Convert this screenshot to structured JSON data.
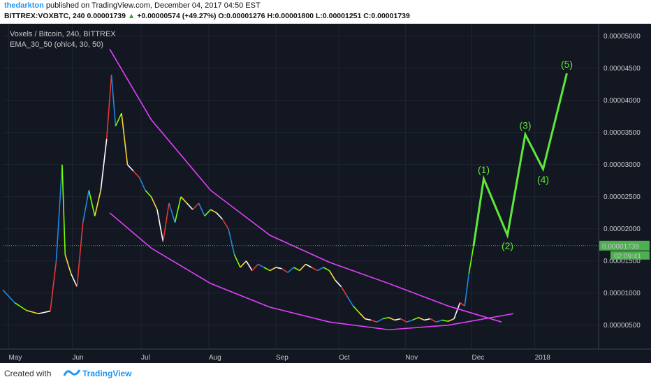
{
  "header": {
    "author": "thedarkton",
    "published_text": "published on TradingView.com, December 04, 2017 04:50 EST",
    "symbol": "BITTREX:VOXBTC, 240",
    "last": "0.00001739",
    "change": "+0.00000574 (+49.27%)",
    "open_label": "O:",
    "open": "0.00001276",
    "high_label": "H:",
    "high": "0.00001800",
    "low_label": "L:",
    "low": "0.00001251",
    "close_label": "C:",
    "close": "0.00001739"
  },
  "legend": {
    "pair": "Voxels / Bitcoin, 240, BITTREX",
    "indicator": "EMA_30_50 (ohlc4, 30, 50)"
  },
  "price_tag": {
    "value": "0.00001739",
    "countdown": "02:09:41",
    "color": "#4caf50"
  },
  "footer": {
    "created_with": "Created with",
    "brand": "TradingView"
  },
  "colors": {
    "background": "#131722",
    "channel": "#e040fb",
    "projection": "#5ee83a",
    "grid": "#1f2533"
  },
  "chart_data": {
    "type": "line",
    "title": "Voxels / Bitcoin, 240, BITTREX",
    "yaxis_ticks": [
      "0.00000500",
      "0.00001000",
      "0.00001500",
      "0.00002000",
      "0.00002500",
      "0.00003000",
      "0.00003500",
      "0.00004000",
      "0.00004500",
      "0.00005000"
    ],
    "y_tick_values": [
      5e-06,
      1e-05,
      1.5e-05,
      2e-05,
      2.5e-05,
      3e-05,
      3.5e-05,
      4e-05,
      4.5e-05,
      5e-05
    ],
    "ylim": [
      1.5e-06,
      5.15e-05
    ],
    "xlim": [
      0,
      100
    ],
    "x_ticks": [
      {
        "label": "May",
        "x": 1
      },
      {
        "label": "Jun",
        "x": 11.7
      },
      {
        "label": "Jul",
        "x": 23.3
      },
      {
        "label": "Aug",
        "x": 34.7
      },
      {
        "label": "Sep",
        "x": 46
      },
      {
        "label": "Oct",
        "x": 56.6
      },
      {
        "label": "Nov",
        "x": 67.8
      },
      {
        "label": "Dec",
        "x": 79
      },
      {
        "label": "2018",
        "x": 89.6
      }
    ],
    "current_price": 1.739e-05,
    "price_series": [
      [
        0,
        1.05e-05
      ],
      [
        2,
        8.5e-06
      ],
      [
        4,
        7.3e-06
      ],
      [
        6,
        6.8e-06
      ],
      [
        8,
        7.2e-06
      ],
      [
        9,
        1.5e-05
      ],
      [
        10,
        3e-05
      ],
      [
        10.5,
        1.6e-05
      ],
      [
        11.5,
        1.3e-05
      ],
      [
        12.5,
        1.1e-05
      ],
      [
        13.5,
        2.1e-05
      ],
      [
        14.5,
        2.6e-05
      ],
      [
        15.5,
        2.2e-05
      ],
      [
        16.5,
        2.6e-05
      ],
      [
        17.5,
        3.4e-05
      ],
      [
        18.3,
        4.4e-05
      ],
      [
        19,
        3.6e-05
      ],
      [
        20,
        3.8e-05
      ],
      [
        21,
        3e-05
      ],
      [
        22,
        2.9e-05
      ],
      [
        23,
        2.8e-05
      ],
      [
        24,
        2.6e-05
      ],
      [
        25,
        2.5e-05
      ],
      [
        26,
        2.3e-05
      ],
      [
        27,
        1.8e-05
      ],
      [
        28,
        2.4e-05
      ],
      [
        29,
        2.1e-05
      ],
      [
        30,
        2.5e-05
      ],
      [
        31,
        2.4e-05
      ],
      [
        32,
        2.3e-05
      ],
      [
        33,
        2.4e-05
      ],
      [
        34,
        2.2e-05
      ],
      [
        35,
        2.3e-05
      ],
      [
        36,
        2.25e-05
      ],
      [
        37,
        2.15e-05
      ],
      [
        38,
        2e-05
      ],
      [
        39,
        1.6e-05
      ],
      [
        40,
        1.4e-05
      ],
      [
        41,
        1.5e-05
      ],
      [
        42,
        1.35e-05
      ],
      [
        43,
        1.45e-05
      ],
      [
        44,
        1.4e-05
      ],
      [
        45,
        1.35e-05
      ],
      [
        46,
        1.4e-05
      ],
      [
        47,
        1.38e-05
      ],
      [
        48,
        1.32e-05
      ],
      [
        49,
        1.4e-05
      ],
      [
        50,
        1.35e-05
      ],
      [
        51,
        1.45e-05
      ],
      [
        52,
        1.4e-05
      ],
      [
        53,
        1.35e-05
      ],
      [
        54,
        1.4e-05
      ],
      [
        55,
        1.35e-05
      ],
      [
        56,
        1.2e-05
      ],
      [
        57,
        1.1e-05
      ],
      [
        58,
        9.5e-06
      ],
      [
        59,
        8e-06
      ],
      [
        60,
        7e-06
      ],
      [
        61,
        6e-06
      ],
      [
        62,
        5.8e-06
      ],
      [
        63,
        5.5e-06
      ],
      [
        64,
        6e-06
      ],
      [
        65,
        6.2e-06
      ],
      [
        66,
        5.8e-06
      ],
      [
        67,
        6e-06
      ],
      [
        68,
        5.5e-06
      ],
      [
        69,
        5.8e-06
      ],
      [
        70,
        6.2e-06
      ],
      [
        71,
        5.8e-06
      ],
      [
        72,
        6e-06
      ],
      [
        73,
        5.5e-06
      ],
      [
        74,
        5.8e-06
      ],
      [
        75,
        5.6e-06
      ],
      [
        76,
        6e-06
      ],
      [
        77,
        8.5e-06
      ],
      [
        77.8,
        8e-06
      ],
      [
        78.5,
        1.3e-05
      ],
      [
        79.3,
        1.74e-05
      ]
    ],
    "channel_upper": [
      [
        18,
        4.8e-05
      ],
      [
        25,
        3.7e-05
      ],
      [
        35,
        2.6e-05
      ],
      [
        45,
        1.9e-05
      ],
      [
        55,
        1.48e-05
      ],
      [
        65,
        1.15e-05
      ],
      [
        75,
        8e-06
      ],
      [
        84,
        5.5e-06
      ]
    ],
    "channel_lower": [
      [
        18,
        2.25e-05
      ],
      [
        25,
        1.7e-05
      ],
      [
        35,
        1.15e-05
      ],
      [
        45,
        7.8e-06
      ],
      [
        55,
        5.5e-06
      ],
      [
        65,
        4.3e-06
      ],
      [
        75,
        5e-06
      ],
      [
        86,
        6.8e-06
      ]
    ],
    "wave_projection": [
      {
        "label": "",
        "x": 79.3,
        "y": 1.74e-05
      },
      {
        "label": "(1)",
        "x": 81.0,
        "y": 2.78e-05
      },
      {
        "label": "(2)",
        "x": 85.0,
        "y": 1.9e-05
      },
      {
        "label": "(3)",
        "x": 88.0,
        "y": 3.47e-05
      },
      {
        "label": "(4)",
        "x": 91.0,
        "y": 2.93e-05
      },
      {
        "label": "(5)",
        "x": 95.0,
        "y": 4.42e-05
      }
    ]
  }
}
